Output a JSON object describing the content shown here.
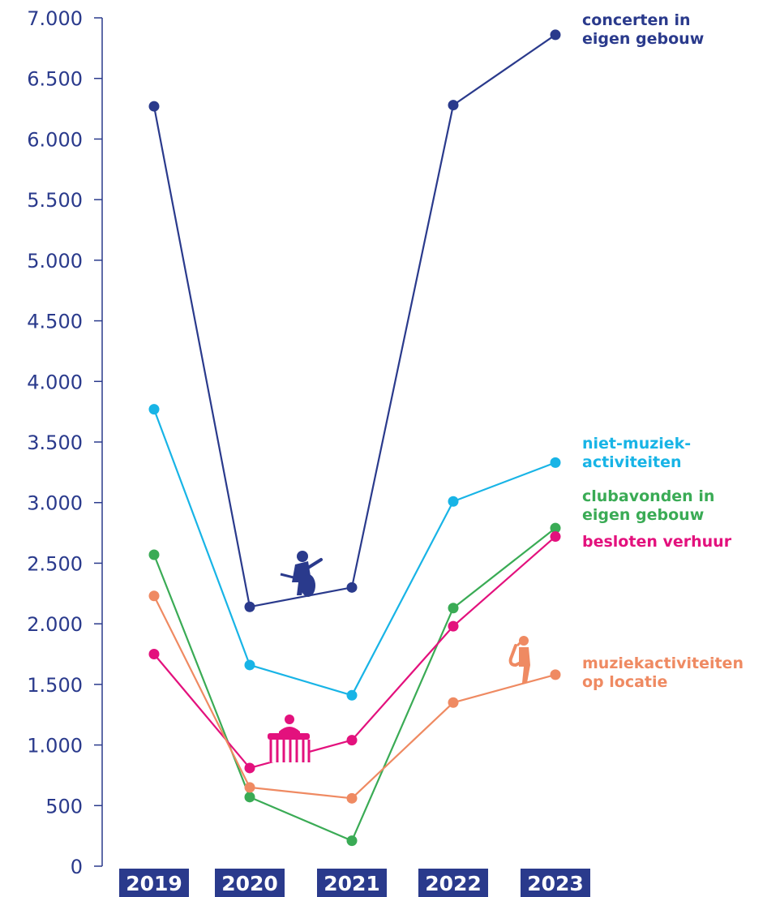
{
  "colors": {
    "axis": "#2a3a8c",
    "year_box": "#2a3a8c",
    "concerten": "#2a3a8c",
    "niet_muziek": "#18b4e6",
    "clubavonden": "#3aab55",
    "besloten": "#e3117d",
    "muziek_locatie": "#ef8a62"
  },
  "icons": [
    "guitarist-icon",
    "dj-booth-icon",
    "saxophonist-icon"
  ],
  "chart_data": {
    "type": "line",
    "title": "",
    "xlabel": "",
    "ylabel": "",
    "x": [
      "2019",
      "2020",
      "2021",
      "2022",
      "2023"
    ],
    "ylim": [
      0,
      7000
    ],
    "yticks": [
      0,
      500,
      1000,
      1500,
      2000,
      2500,
      3000,
      3500,
      4000,
      4500,
      5000,
      5500,
      6000,
      6500,
      7000
    ],
    "ytick_labels": [
      "0",
      "500",
      "1.000",
      "1.500",
      "2.000",
      "2.500",
      "3.000",
      "3.500",
      "4.000",
      "4.500",
      "5.000",
      "5.500",
      "6.000",
      "6.500",
      "7.000"
    ],
    "grid": false,
    "legend": "right (inline labels)",
    "series": [
      {
        "key": "concerten",
        "name_lines": [
          "concerten in",
          "eigen gebouw"
        ],
        "values": [
          6270,
          2140,
          2300,
          6280,
          6860
        ]
      },
      {
        "key": "niet_muziek",
        "name_lines": [
          "niet-muziek-",
          "activiteiten"
        ],
        "values": [
          3770,
          1660,
          1410,
          3010,
          3330
        ]
      },
      {
        "key": "clubavonden",
        "name_lines": [
          "clubavonden in",
          "eigen gebouw"
        ],
        "values": [
          2570,
          570,
          210,
          2130,
          2790
        ]
      },
      {
        "key": "besloten",
        "name_lines": [
          "besloten verhuur"
        ],
        "values": [
          1750,
          810,
          1040,
          1980,
          2720
        ]
      },
      {
        "key": "muziek_locatie",
        "name_lines": [
          "muziekactiviteiten",
          "op locatie"
        ],
        "values": [
          2230,
          650,
          560,
          1350,
          1580
        ]
      }
    ]
  }
}
